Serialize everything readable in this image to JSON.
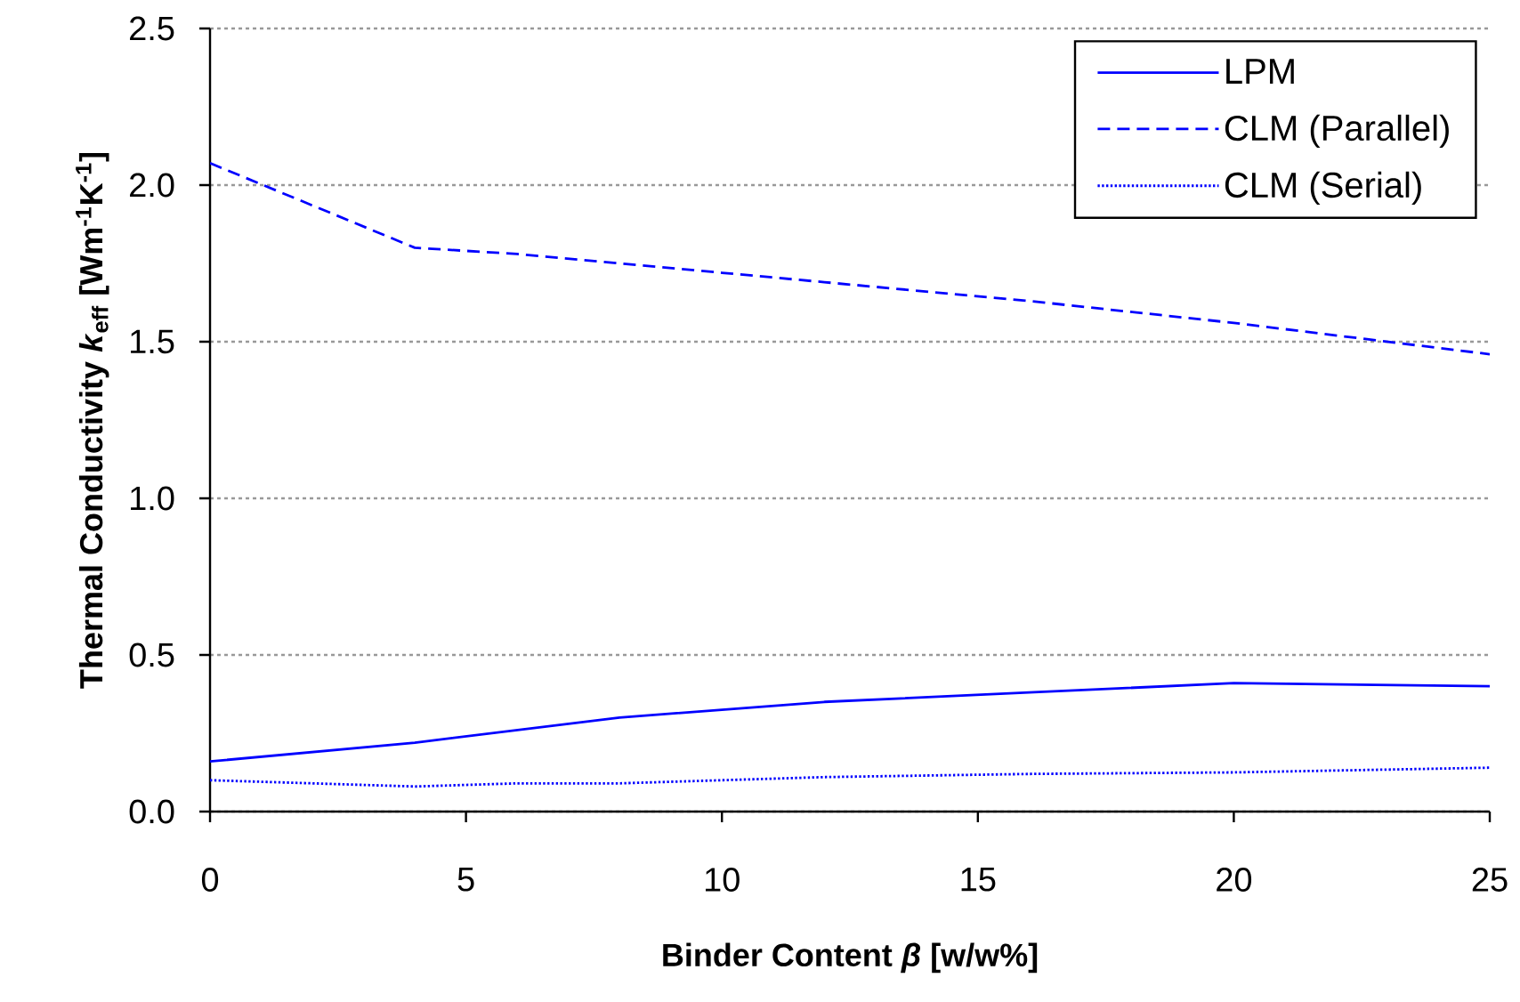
{
  "chart_data": {
    "type": "line",
    "xlabel": "Binder Content *β* [w/w%]",
    "ylabel": "Thermal Conductivity  *k*$_{eff}$ [Wm$^{-1}$K$^{-1}$]",
    "x": [
      0,
      4,
      6,
      8,
      10,
      12,
      16,
      20,
      25
    ],
    "series": [
      {
        "name": "LPM",
        "color": "#0000ff",
        "line_style": "solid",
        "values": [
          0.16,
          0.22,
          0.26,
          0.3,
          0.325,
          0.35,
          0.38,
          0.41,
          0.4
        ]
      },
      {
        "name": "CLM (Parallel)",
        "color": "#0000ff",
        "line_style": "dashed",
        "values": [
          2.07,
          1.8,
          1.78,
          1.75,
          1.72,
          1.69,
          1.63,
          1.56,
          1.46
        ]
      },
      {
        "name": "CLM (Serial)",
        "color": "#0000ff",
        "line_style": "dotted",
        "values": [
          0.1,
          0.08,
          0.09,
          0.09,
          0.1,
          0.11,
          0.12,
          0.125,
          0.14
        ]
      }
    ],
    "xlim": [
      0,
      25
    ],
    "ylim": [
      0,
      2.5
    ],
    "xticks": [
      0,
      5,
      10,
      15,
      20,
      25
    ],
    "yticks": [
      {
        "value": 0,
        "label": "0.0"
      },
      {
        "value": 0.5,
        "label": "0.5"
      },
      {
        "value": 1,
        "label": "1.0"
      },
      {
        "value": 1.5,
        "label": "1.5"
      },
      {
        "value": 2,
        "label": "2.0"
      },
      {
        "value": 2.5,
        "label": "2.5"
      }
    ],
    "grid": "y",
    "legend": "top right",
    "marker": "none"
  }
}
